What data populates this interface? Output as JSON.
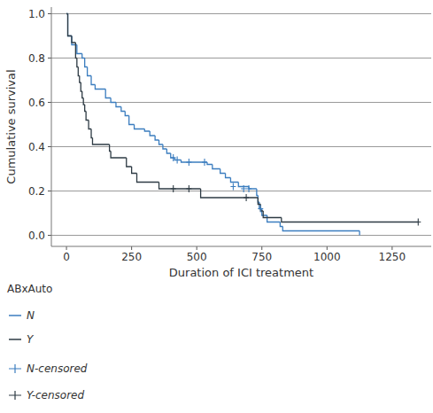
{
  "chart_data": {
    "type": "step",
    "x_label": "Duration of ICI treatment",
    "y_label": "Cumulative survival",
    "xlim": [
      -58,
      1400
    ],
    "ylim": [
      -0.05,
      1.03
    ],
    "xticks": [
      0,
      250,
      500,
      750,
      1000,
      1250
    ],
    "yticks": [
      {
        "value": 0,
        "label": "0.0"
      },
      0.2,
      0.4,
      0.6,
      0.8,
      {
        "value": 1,
        "label": "1.0"
      }
    ],
    "grid": true,
    "legend": "bottom",
    "legend_title": "ABxAuto",
    "series": [
      {
        "name": "N",
        "color": "#3b7dbf",
        "line_style": "step",
        "x": [
          0,
          5,
          20,
          40,
          60,
          70,
          80,
          95,
          110,
          150,
          170,
          190,
          210,
          225,
          240,
          260,
          300,
          320,
          340,
          355,
          370,
          385,
          400,
          415,
          440,
          540,
          560,
          590,
          610,
          630,
          660,
          700,
          730,
          735,
          740,
          750,
          770,
          820,
          830,
          1125
        ],
        "values": [
          1.0,
          0.9,
          0.86,
          0.82,
          0.8,
          0.76,
          0.72,
          0.68,
          0.66,
          0.62,
          0.6,
          0.58,
          0.56,
          0.54,
          0.5,
          0.48,
          0.47,
          0.45,
          0.43,
          0.41,
          0.39,
          0.37,
          0.35,
          0.34,
          0.33,
          0.32,
          0.3,
          0.28,
          0.26,
          0.24,
          0.22,
          0.21,
          0.18,
          0.15,
          0.12,
          0.09,
          0.06,
          0.04,
          0.02,
          0.0
        ]
      },
      {
        "name": "Y",
        "color": "#2e3b44",
        "line_style": "step",
        "x": [
          0,
          5,
          20,
          35,
          40,
          45,
          50,
          55,
          60,
          65,
          70,
          75,
          85,
          95,
          100,
          165,
          170,
          230,
          250,
          270,
          355,
          515,
          735,
          745,
          755,
          825,
          1350
        ],
        "values": [
          1.0,
          0.9,
          0.87,
          0.8,
          0.76,
          0.72,
          0.69,
          0.65,
          0.62,
          0.59,
          0.56,
          0.52,
          0.48,
          0.44,
          0.41,
          0.38,
          0.35,
          0.31,
          0.28,
          0.24,
          0.21,
          0.17,
          0.14,
          0.11,
          0.08,
          0.06,
          0.06
        ]
      },
      {
        "name": "N-censored",
        "color": "#3b7dbf",
        "marker": "plus",
        "type": "scatter",
        "x": [
          410,
          425,
          470,
          530,
          640,
          680,
          700,
          745
        ],
        "values": [
          0.35,
          0.34,
          0.33,
          0.33,
          0.22,
          0.21,
          0.21,
          0.12
        ]
      },
      {
        "name": "Y-censored",
        "color": "#2e3b44",
        "marker": "plus",
        "type": "scatter",
        "x": [
          410,
          470,
          690,
          1350
        ],
        "values": [
          0.21,
          0.21,
          0.17,
          0.06
        ]
      }
    ]
  }
}
